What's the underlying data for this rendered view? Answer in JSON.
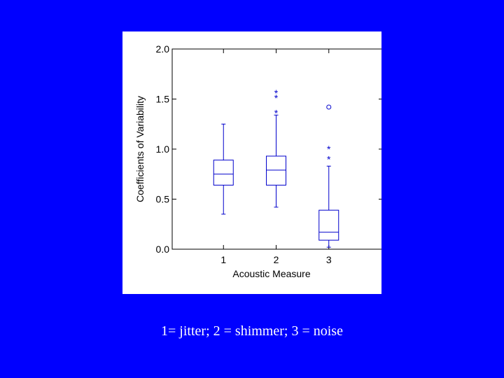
{
  "chart_data": {
    "type": "box",
    "title": "",
    "xlabel": "Acoustic Measure",
    "ylabel": "Coefficients of Variability",
    "categories": [
      "1",
      "2",
      "3"
    ],
    "ylim": [
      0.0,
      2.0
    ],
    "yticks": [
      "0.0",
      "0.5",
      "1.0",
      "1.5",
      "2.0"
    ],
    "grid": false,
    "boxes": [
      {
        "category": "1",
        "whisker_low": 0.35,
        "q1": 0.64,
        "median": 0.75,
        "q3": 0.89,
        "whisker_high": 1.25,
        "outliers": []
      },
      {
        "category": "2",
        "whisker_low": 0.42,
        "q1": 0.64,
        "median": 0.79,
        "q3": 0.93,
        "whisker_high": 1.34,
        "outliers": [
          {
            "value": 1.38,
            "marker": "*"
          },
          {
            "value": 1.53,
            "marker": "*"
          },
          {
            "value": 1.58,
            "marker": "*"
          }
        ]
      },
      {
        "category": "3",
        "whisker_low": 0.02,
        "q1": 0.09,
        "median": 0.17,
        "q3": 0.39,
        "whisker_high": 0.83,
        "outliers": [
          {
            "value": 0.92,
            "marker": "*"
          },
          {
            "value": 1.02,
            "marker": "*"
          },
          {
            "value": 1.42,
            "marker": "o"
          }
        ]
      }
    ],
    "box_color": "#0000cc"
  },
  "caption": "1= jitter; 2 = shimmer; 3 = noise",
  "colors": {
    "background": "#0000ff",
    "panel": "#ffffff",
    "caption": "#ffffff"
  }
}
